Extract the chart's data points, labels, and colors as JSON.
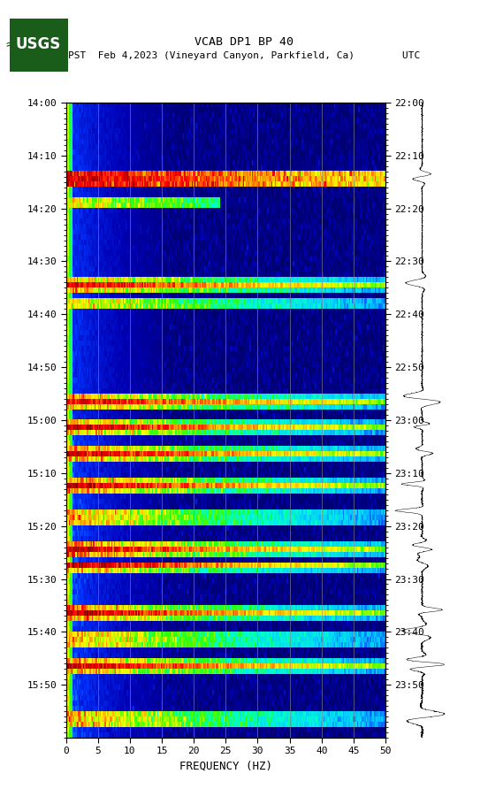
{
  "title_line1": "VCAB DP1 BP 40",
  "title_line2": "PST  Feb 4,2023 (Vineyard Canyon, Parkfield, Ca)        UTC",
  "xlabel": "FREQUENCY (HZ)",
  "freq_min": 0,
  "freq_max": 50,
  "freq_ticks": [
    0,
    5,
    10,
    15,
    20,
    25,
    30,
    35,
    40,
    45,
    50
  ],
  "pst_labels": [
    "14:00",
    "14:10",
    "14:20",
    "14:30",
    "14:40",
    "14:50",
    "15:00",
    "15:10",
    "15:20",
    "15:30",
    "15:40",
    "15:50"
  ],
  "utc_labels": [
    "22:00",
    "22:10",
    "22:20",
    "22:30",
    "22:40",
    "22:50",
    "23:00",
    "23:10",
    "23:20",
    "23:30",
    "23:40",
    "23:50"
  ],
  "vline_positions": [
    5,
    10,
    15,
    20,
    25,
    30,
    35,
    40,
    45
  ],
  "vline_color": "#888888",
  "seed": 42,
  "n_time": 120,
  "n_freq": 250,
  "total_minutes": 120,
  "label_interval_min": 10,
  "fig_width": 5.52,
  "fig_height": 8.92,
  "dpi": 100
}
